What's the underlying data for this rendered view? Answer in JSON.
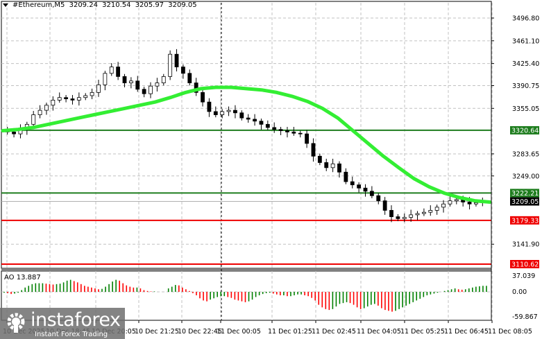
{
  "header": {
    "symbol": "#Ethereum,M5",
    "open": "3209.24",
    "high": "3210.54",
    "low": "3205.97",
    "close": "3209.05"
  },
  "indicator": {
    "label": "AO 13.887",
    "scale_top": "37.039",
    "scale_zero": "0.00",
    "scale_bottom": "-59.867"
  },
  "watermark": {
    "brand": "instaforex",
    "tagline": "Instant Forex Trading"
  },
  "colors": {
    "bull_ao": "#008000",
    "bear_ao": "#ff0000",
    "ma": "#33ee33",
    "resistance": "#1e7d1e",
    "support": "#ee0000",
    "price_tag": "#000000"
  },
  "chart_data": {
    "type": "candlestick",
    "title": "#Ethereum,M5",
    "y_ticks": [
      "3496.80",
      "3461.10",
      "3425.40",
      "3390.75",
      "3355.05",
      "3320.64",
      "3283.65",
      "3249.00",
      "3222.21",
      "3209.05",
      "3179.33",
      "3141.90",
      "3110.62"
    ],
    "x_ticks": [
      "10 Dec 2025",
      "10 Dec 18:45",
      "10 Dec 20:05",
      "10 Dec 21:25",
      "10 Dec 22:45",
      "11 Dec 00:05",
      "11 Dec 01:25",
      "11 Dec 02:45",
      "11 Dec 04:05",
      "11 Dec 05:25",
      "11 Dec 06:45",
      "11 Dec 08:05"
    ],
    "levels": [
      {
        "price": 3320.64,
        "color": "green",
        "label": "3320.64"
      },
      {
        "price": 3222.21,
        "color": "green",
        "label": "3222.21"
      },
      {
        "price": 3179.33,
        "color": "red",
        "label": "3179.33"
      },
      {
        "price": 3110.62,
        "color": "red",
        "label": "3110.62"
      }
    ],
    "current_price": 3209.05,
    "ylim": [
      3100,
      3510
    ],
    "close_path": [
      3318,
      3315,
      3322,
      3330,
      3345,
      3352,
      3360,
      3368,
      3372,
      3370,
      3368,
      3372,
      3375,
      3380,
      3392,
      3410,
      3420,
      3405,
      3395,
      3398,
      3385,
      3378,
      3390,
      3395,
      3405,
      3440,
      3420,
      3410,
      3395,
      3380,
      3365,
      3350,
      3345,
      3350,
      3352,
      3348,
      3340,
      3338,
      3335,
      3330,
      3325,
      3322,
      3320,
      3318,
      3316,
      3315,
      3300,
      3280,
      3270,
      3262,
      3268,
      3255,
      3240,
      3235,
      3230,
      3225,
      3218,
      3210,
      3195,
      3185,
      3182,
      3184,
      3188,
      3190,
      3192,
      3195,
      3200,
      3205,
      3210,
      3212,
      3208,
      3205,
      3207,
      3209
    ],
    "ma_path": [
      3320,
      3322,
      3325,
      3330,
      3335,
      3340,
      3345,
      3350,
      3355,
      3360,
      3365,
      3372,
      3380,
      3386,
      3388,
      3388,
      3386,
      3384,
      3380,
      3374,
      3366,
      3355,
      3340,
      3320,
      3300,
      3280,
      3262,
      3245,
      3232,
      3222,
      3215,
      3210,
      3208
    ],
    "ao_values": [
      -2,
      -3,
      -5,
      -4,
      -2,
      4,
      10,
      14,
      18,
      20,
      20,
      20,
      19,
      18,
      17,
      18,
      19,
      22,
      26,
      28,
      25,
      22,
      18,
      14,
      12,
      10,
      8,
      6,
      7,
      12,
      18,
      24,
      28,
      26,
      20,
      15,
      12,
      10,
      10,
      8,
      4,
      2,
      1,
      1,
      0,
      0,
      0,
      8,
      12,
      16,
      15,
      10,
      6,
      2,
      -3,
      -8,
      -15,
      -20,
      -22,
      -18,
      -15,
      -12,
      -10,
      -10,
      -12,
      -14,
      -18,
      -20,
      -22,
      -24,
      -22,
      -18,
      -12,
      -8,
      -5,
      -3,
      -2,
      -4,
      -6,
      -8,
      -8,
      -10,
      -10,
      -8,
      -6,
      -6,
      -8,
      -10,
      -14,
      -20,
      -30,
      -36,
      -40,
      -42,
      -40,
      -34,
      -28,
      -26,
      -24,
      -26,
      -30,
      -36,
      -40,
      -38,
      -34,
      -30,
      -28,
      -32,
      -38,
      -42,
      -44,
      -46,
      -44,
      -40,
      -36,
      -32,
      -28,
      -24,
      -20,
      -16,
      -12,
      -8,
      -6,
      -4,
      -2,
      0,
      2,
      4,
      6,
      8,
      6,
      5,
      6,
      8,
      10,
      12,
      13,
      14,
      14
    ],
    "ao_ylim": [
      -59.867,
      37.039
    ]
  }
}
